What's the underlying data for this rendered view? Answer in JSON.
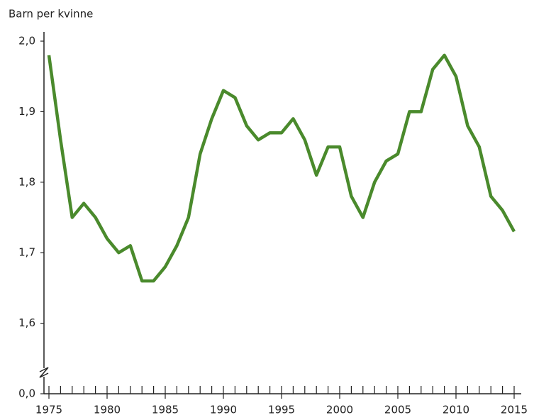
{
  "chart_data": {
    "type": "line",
    "y_label": "Barn per kvinne",
    "x": [
      1975,
      1976,
      1977,
      1978,
      1979,
      1980,
      1981,
      1982,
      1983,
      1984,
      1985,
      1986,
      1987,
      1988,
      1989,
      1990,
      1991,
      1992,
      1993,
      1994,
      1995,
      1996,
      1997,
      1998,
      1999,
      2000,
      2001,
      2002,
      2003,
      2004,
      2005,
      2006,
      2007,
      2008,
      2009,
      2010,
      2011,
      2012,
      2013,
      2014,
      2015
    ],
    "series": [
      {
        "color": "#4a8a2c",
        "values": [
          1.98,
          1.86,
          1.75,
          1.77,
          1.75,
          1.72,
          1.7,
          1.71,
          1.66,
          1.66,
          1.68,
          1.71,
          1.75,
          1.84,
          1.89,
          1.93,
          1.92,
          1.88,
          1.86,
          1.87,
          1.87,
          1.89,
          1.86,
          1.81,
          1.85,
          1.85,
          1.78,
          1.75,
          1.8,
          1.83,
          1.84,
          1.9,
          1.9,
          1.96,
          1.98,
          1.95,
          1.88,
          1.85,
          1.78,
          1.76,
          1.73
        ]
      }
    ],
    "xlim": [
      1975,
      2015
    ],
    "xticks": [
      1975,
      1980,
      1985,
      1990,
      1995,
      2000,
      2005,
      2010,
      2015
    ],
    "ylim": [
      1.5,
      2.0
    ],
    "yticks": [
      {
        "value": 0,
        "label": "0,0"
      },
      {
        "value": 1.6,
        "label": "1,6"
      },
      {
        "value": 1.7,
        "label": "1,7"
      },
      {
        "value": 1.8,
        "label": "1,8"
      },
      {
        "value": 1.9,
        "label": "1,9"
      },
      {
        "value": 2.0,
        "label": "2,0"
      }
    ],
    "axis_break": true
  }
}
